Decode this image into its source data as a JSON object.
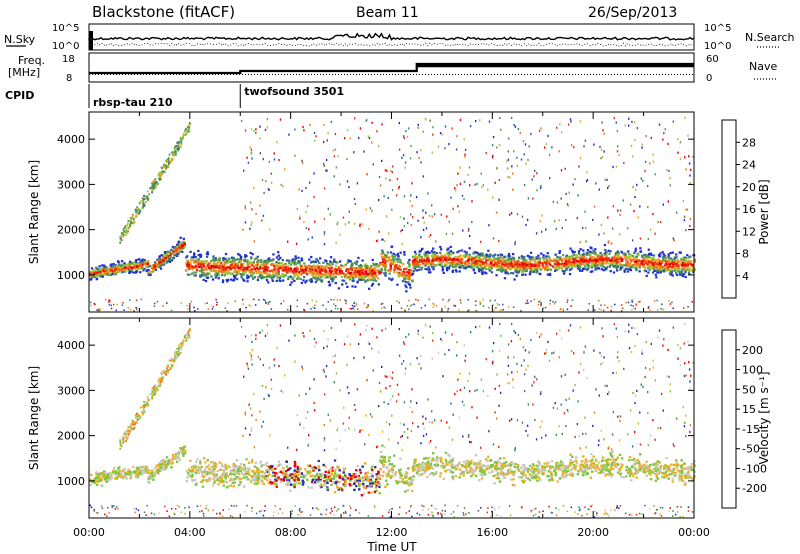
{
  "header": {
    "station": "Blackstone (fitACF)",
    "beam": "Beam 11",
    "date": "26/Sep/2013"
  },
  "noise_panel": {
    "left_label": "N.Sky",
    "right_label": "N.Search",
    "left_ticks": [
      "10^5",
      "10^0"
    ],
    "right_ticks": [
      "10^5",
      "10^0"
    ]
  },
  "freq_panel": {
    "left_label_line1": "Freq.",
    "left_label_line2": "[MHz]",
    "right_label": "Nave",
    "left_ticks": [
      "18",
      "8"
    ],
    "right_ticks": [
      "60",
      "0"
    ]
  },
  "cpid": {
    "label": "CPID",
    "segments": [
      {
        "name": "rbsp-tau 210",
        "start_hour": 0
      },
      {
        "name": "twofsound 3501",
        "start_hour": 6
      }
    ]
  },
  "chart_data": [
    {
      "type": "heatmap",
      "name": "power",
      "ylabel": "Slant Range [km]",
      "ylim": [
        180,
        4600
      ],
      "yticks": [
        1000,
        2000,
        3000,
        4000
      ],
      "xlim": [
        0,
        24
      ],
      "colorbar_label": "Power [dB]",
      "colorbar_ticks": [
        "4",
        "8",
        "12",
        "16",
        "20",
        "24",
        "28"
      ],
      "colorscale": [
        "#1f2dd0",
        "#2f58a8",
        "#3c7f6a",
        "#5aa04a",
        "#9fc93a",
        "#f0a020",
        "#f07018",
        "#e83010",
        "#ee0000"
      ]
    },
    {
      "type": "heatmap",
      "name": "velocity",
      "ylabel": "Slant Range [km]",
      "ylim": [
        180,
        4600
      ],
      "yticks": [
        1000,
        2000,
        3000,
        4000
      ],
      "xlim": [
        0,
        24
      ],
      "xticks": [
        "00:00",
        "04:00",
        "08:00",
        "12:00",
        "16:00",
        "20:00",
        "00:00"
      ],
      "xlabel": "Time UT",
      "colorbar_label": "Velocity [m s⁻¹]",
      "colorbar_ticks": [
        "200",
        "100",
        "50",
        "15",
        "-15",
        "-50",
        "-100",
        "-200"
      ],
      "colorscale": [
        "#2a2ab8",
        "#2f6f9a",
        "#3d8a50",
        "#7cc63c",
        "#c8c8c0",
        "#f0b020",
        "#f07a10",
        "#e83010",
        "#ee0000"
      ]
    }
  ]
}
